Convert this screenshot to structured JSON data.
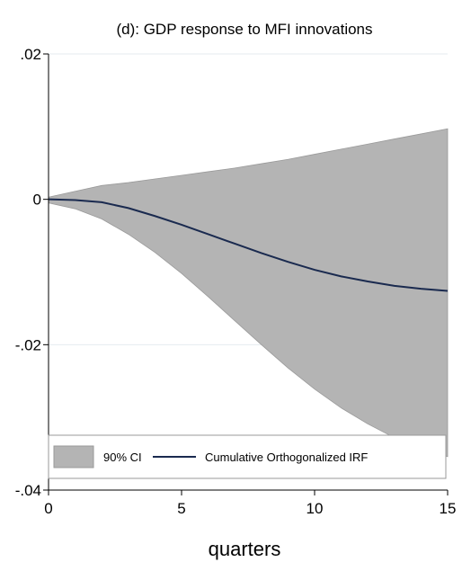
{
  "chart_data": {
    "type": "area",
    "title": "(d): GDP response to MFI innovations",
    "xlabel": "quarters",
    "ylabel": "",
    "xlim": [
      0,
      15
    ],
    "ylim": [
      -0.04,
      0.02
    ],
    "x_ticks": [
      0,
      5,
      10,
      15
    ],
    "x_tick_labels": [
      "0",
      "5",
      "10",
      "15"
    ],
    "y_ticks": [
      -0.04,
      -0.02,
      0,
      0.02
    ],
    "y_tick_labels": [
      "-.04",
      "-.02",
      "0",
      ".02"
    ],
    "grid": true,
    "legend_position": "bottom",
    "x": [
      0,
      1,
      2,
      3,
      4,
      5,
      6,
      7,
      8,
      9,
      10,
      11,
      12,
      13,
      14,
      15
    ],
    "series": [
      {
        "name": "Cumulative Orthogonalized IRF",
        "kind": "line",
        "color": "#1a2a4f",
        "values": [
          0,
          -0.0001,
          -0.0004,
          -0.0012,
          -0.0023,
          -0.0035,
          -0.0048,
          -0.0061,
          -0.0074,
          -0.0086,
          -0.0097,
          -0.0106,
          -0.0113,
          -0.0119,
          -0.0123,
          -0.0126
        ]
      },
      {
        "name": "90% CI",
        "kind": "band",
        "color": "#b4b4b4",
        "lower": [
          -0.0005,
          -0.0013,
          -0.0027,
          -0.0048,
          -0.0073,
          -0.0102,
          -0.0134,
          -0.0167,
          -0.02,
          -0.0232,
          -0.0261,
          -0.0287,
          -0.0309,
          -0.0328,
          -0.0343,
          -0.0354
        ],
        "upper": [
          0.0003,
          0.0011,
          0.0019,
          0.0023,
          0.0028,
          0.0033,
          0.0038,
          0.0043,
          0.0049,
          0.0055,
          0.0062,
          0.0069,
          0.0076,
          0.0083,
          0.009,
          0.0097
        ]
      }
    ],
    "colors": {
      "band": "#b4b4b4",
      "band_edge": "#9a9a9a",
      "line": "#1a2a4f",
      "grid": "#e4ebef",
      "axis": "#000000"
    }
  }
}
